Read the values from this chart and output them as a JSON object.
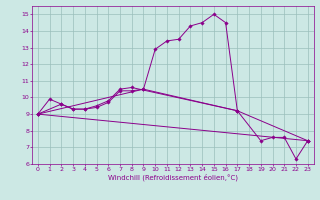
{
  "xlabel": "Windchill (Refroidissement éolien,°C)",
  "background_color": "#cce8e4",
  "grid_color": "#9abfbb",
  "line_color": "#8b008b",
  "xlim": [
    -0.5,
    23.5
  ],
  "ylim": [
    6,
    15.5
  ],
  "xticks": [
    0,
    1,
    2,
    3,
    4,
    5,
    6,
    7,
    8,
    9,
    10,
    11,
    12,
    13,
    14,
    15,
    16,
    17,
    18,
    19,
    20,
    21,
    22,
    23
  ],
  "yticks": [
    6,
    7,
    8,
    9,
    10,
    11,
    12,
    13,
    14,
    15
  ],
  "line1_x": [
    0,
    1,
    2,
    3,
    4,
    5,
    6,
    7,
    8,
    9,
    10,
    11,
    12,
    13,
    14,
    15,
    16,
    17
  ],
  "line1_y": [
    9.0,
    9.9,
    9.6,
    9.3,
    9.3,
    9.4,
    9.7,
    10.4,
    10.4,
    10.5,
    12.9,
    13.4,
    13.5,
    14.3,
    14.5,
    15.0,
    14.5,
    9.2
  ],
  "line2_x": [
    0,
    2,
    3,
    4,
    5,
    6,
    7,
    8,
    17,
    19,
    20,
    21,
    22,
    23
  ],
  "line2_y": [
    9.0,
    9.6,
    9.3,
    9.3,
    9.5,
    9.8,
    10.5,
    10.6,
    9.2,
    7.4,
    7.6,
    7.6,
    6.3,
    7.4
  ],
  "line3_x": [
    0,
    23
  ],
  "line3_y": [
    9.0,
    7.4
  ],
  "line4_x": [
    0,
    9,
    17,
    23
  ],
  "line4_y": [
    9.0,
    10.5,
    9.2,
    7.4
  ],
  "xlabel_fontsize": 5.0,
  "tick_fontsize": 4.5
}
